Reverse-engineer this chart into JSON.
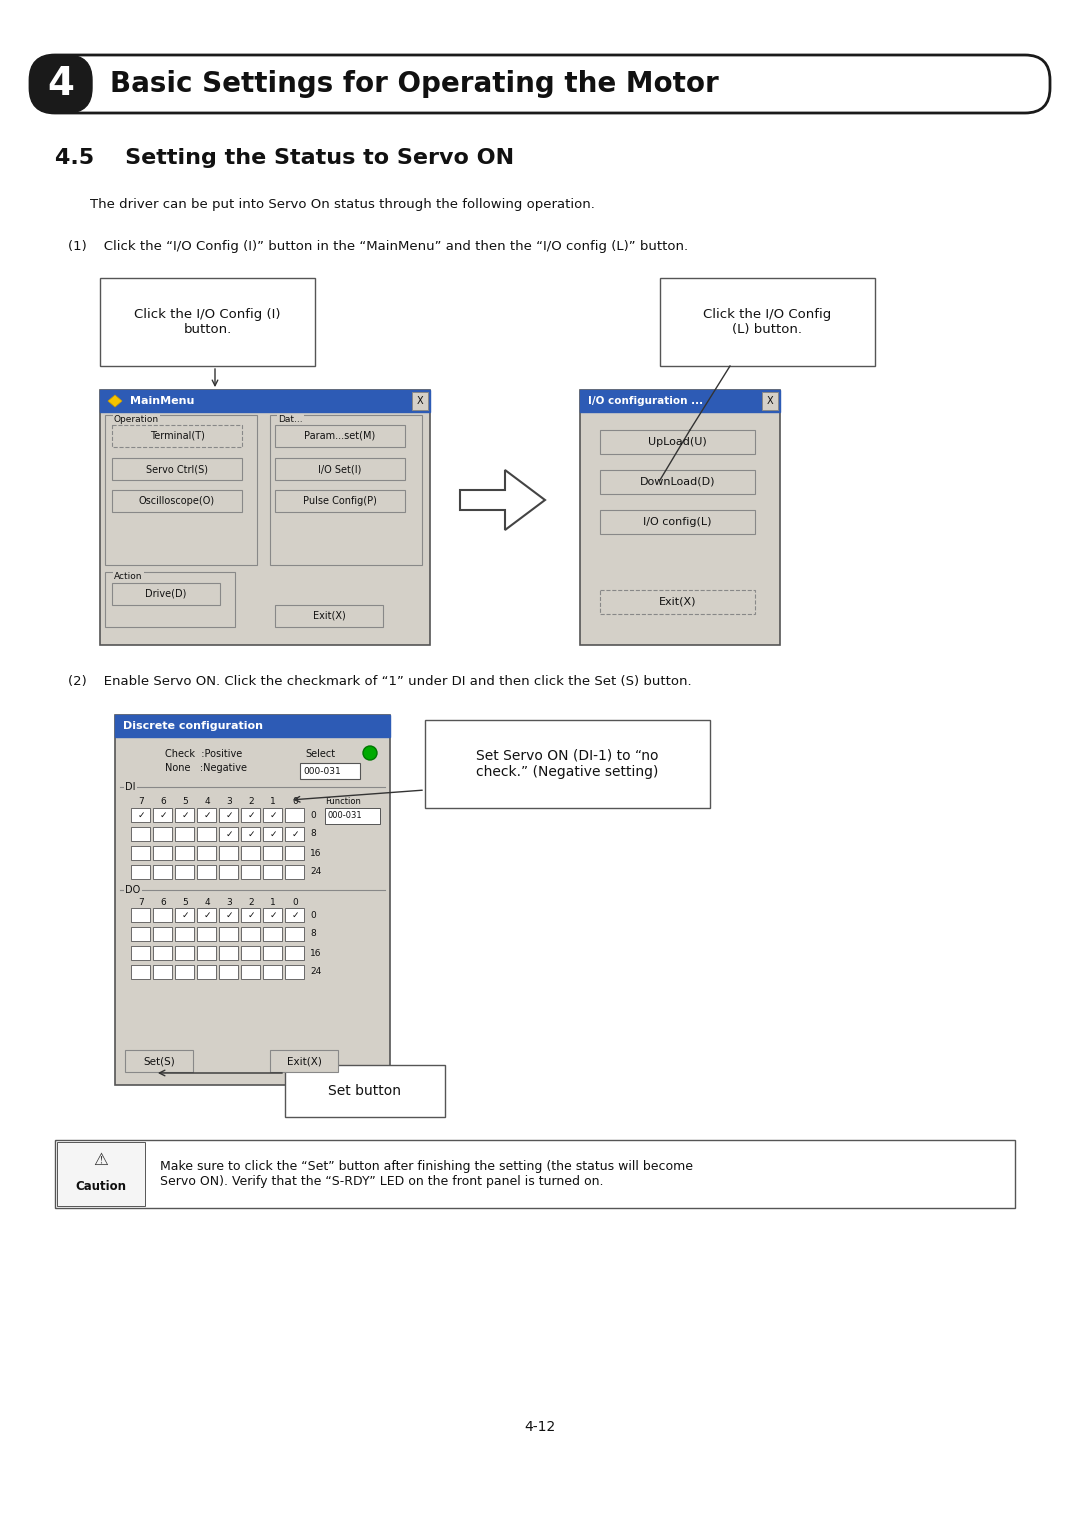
{
  "page_bg": "#ffffff",
  "header_text": "Basic Settings for Operating the Motor",
  "header_num": "4",
  "section_title": "4.5    Setting the Status to Servo ON",
  "body_text1": "The driver can be put into Servo On status through the following operation.",
  "step1_text": "(1)    Click the “I/O Config (I)” button in the “MainMenu” and then the “I/O config (L)” button.",
  "step2_text": "(2)    Enable Servo ON. Click the checkmark of “1” under DI and then click the Set (S) button.",
  "callout1": "Click the I/O Config (I)\nbutton.",
  "callout2": "Click the I/O Config\n(L) button.",
  "callout3": "Set Servo ON (DI-1) to “no\ncheck.” (Negative setting)",
  "callout4": "Set button",
  "caution_text": "Make sure to click the “Set” button after finishing the setting (the status will become\nServo ON). Verify that the “S-RDY” LED on the front panel is turned on.",
  "page_num": "4-12",
  "blue_bar": "#2d5bb5",
  "window_gray": "#d4d0c8",
  "btn_gray": "#d4d0c8",
  "dark_border": "#555555",
  "title_bar_blue": "#2d5bb5"
}
